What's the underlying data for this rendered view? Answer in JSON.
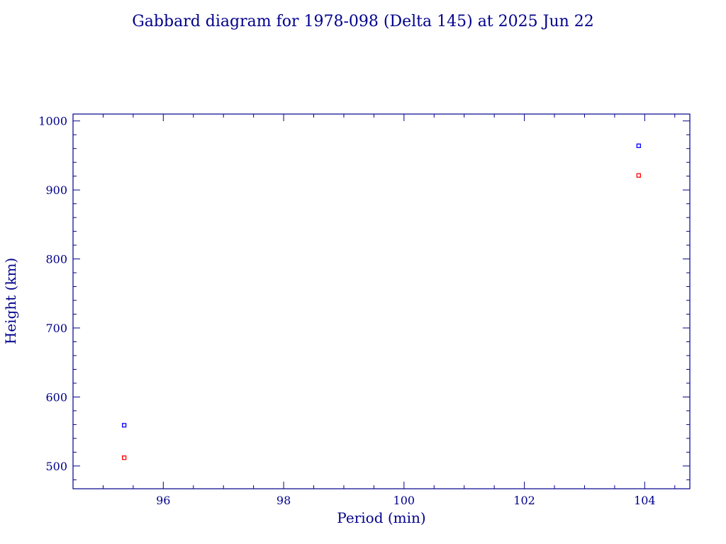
{
  "chart_data": {
    "type": "scatter",
    "title": "Gabbard diagram for 1978-098 (Delta 145) at 2025 Jun 22",
    "xlabel": "Period (min)",
    "ylabel": "Height (km)",
    "xlim": [
      94.5,
      104.75
    ],
    "ylim": [
      467,
      1010
    ],
    "x_ticks": [
      "96",
      "98",
      "100",
      "102",
      "104"
    ],
    "y_ticks": [
      "500",
      "600",
      "700",
      "800",
      "900",
      "1000"
    ],
    "grid": false,
    "legend": "none",
    "series": [
      {
        "color": "#0000ff",
        "points": [
          {
            "x": 95.35,
            "y": 559
          },
          {
            "x": 103.9,
            "y": 964
          }
        ]
      },
      {
        "color": "#ff0000",
        "points": [
          {
            "x": 95.35,
            "y": 512
          },
          {
            "x": 103.9,
            "y": 921
          }
        ]
      }
    ]
  }
}
